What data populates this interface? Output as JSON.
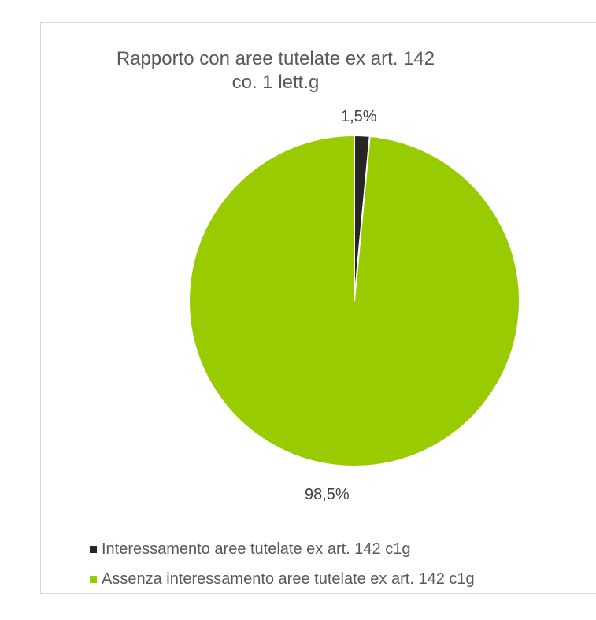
{
  "chart_data": {
    "type": "pie",
    "title_lines": [
      "Rapporto con aree tutelate ex art. 142",
      "co. 1 lett.g"
    ],
    "slices": [
      {
        "label": "Interessamento aree tutelate ex art. 142 c1g",
        "value": 1.5,
        "display": "1,5%",
        "color": "#262626"
      },
      {
        "label": "Assenza interessamento aree tutelate ex art. 142 c1g",
        "value": 98.5,
        "display": "98,5%",
        "color": "#99cc00"
      }
    ],
    "legend_position": "bottom-left",
    "slice_border_color": "#ffffff"
  }
}
